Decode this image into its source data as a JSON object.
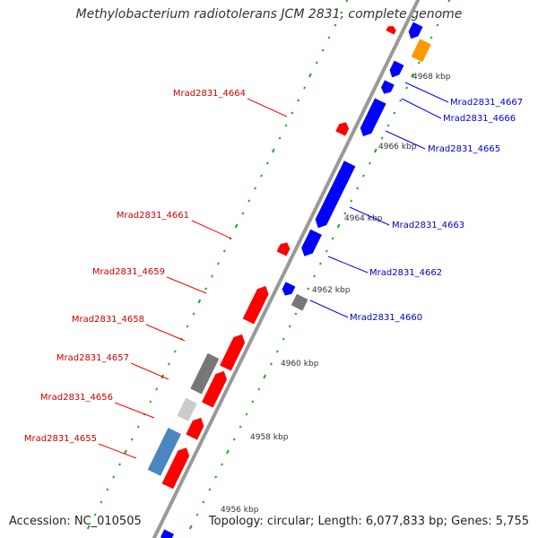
{
  "title": "Methylobacterium radiotolerans JCM 2831, complete genome",
  "accession_text": "Accession: NC_010505",
  "topology_text": "Topology: circular; Length: 6,077,833 bp; Genes: 5,755",
  "colors": {
    "forward_gene": "#ff0000",
    "reverse_gene": "#0000ff",
    "other_feature": "#777777",
    "light_feature": "#cccccc",
    "blue_feature": "#4a86c0",
    "orange_feature": "#ff9900",
    "backbone": "#999999",
    "tick_dots": "#22aa22",
    "forward_label": "#cc0000",
    "reverse_label": "#0000cc"
  },
  "scale_labels": [
    "4968 kbp",
    "4966 kbp",
    "4964 kbp",
    "4962 kbp",
    "4960 kbp",
    "4958 kbp",
    "4956 kbp"
  ],
  "forward_genes": [
    {
      "label": "Mrad2831_4664"
    },
    {
      "label": "Mrad2831_4661"
    },
    {
      "label": "Mrad2831_4659"
    },
    {
      "label": "Mrad2831_4658"
    },
    {
      "label": "Mrad2831_4657"
    },
    {
      "label": "Mrad2831_4656"
    },
    {
      "label": "Mrad2831_4655"
    }
  ],
  "reverse_genes": [
    {
      "label": "Mrad2831_4667"
    },
    {
      "label": "Mrad2831_4666"
    },
    {
      "label": "Mrad2831_4665"
    },
    {
      "label": "Mrad2831_4663"
    },
    {
      "label": "Mrad2831_4662"
    },
    {
      "label": "Mrad2831_4660"
    }
  ]
}
